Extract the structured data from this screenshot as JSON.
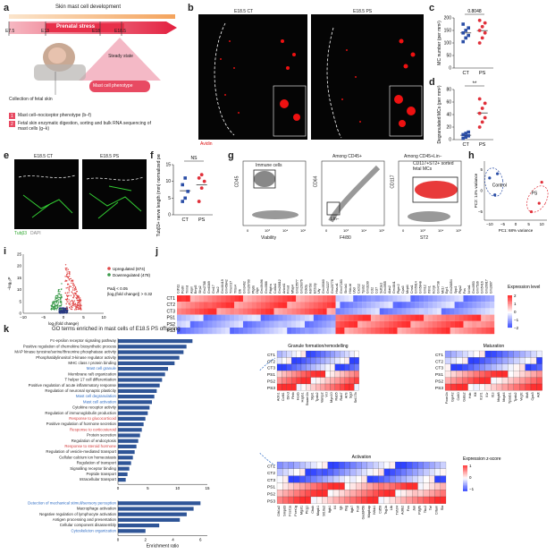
{
  "panels": {
    "a": "a",
    "b": "b",
    "c": "c",
    "d": "d",
    "e": "e",
    "f": "f",
    "g": "g",
    "h": "h",
    "i": "i",
    "j": "j",
    "k": "k"
  },
  "a": {
    "title": "Skin mast cell development",
    "timepoints": [
      "E7.5",
      "E13",
      "E18",
      "E18.5"
    ],
    "stress": "Prenatal stress",
    "steady": "Steady state",
    "phenotype": "Mast cell phenotype",
    "collection": "Collection of fetal skin",
    "item1": "Mast cell–nociceptor phenotype (b–f)",
    "item2": "Fetal skin enzymatic digestion, sorting and bulk RNA sequencing of mast cells (g–k)",
    "num1": "1",
    "num2": "2",
    "colors": {
      "stress": "#e8304a",
      "steady": "#f3b7c4",
      "bar": "#f6c89a"
    }
  },
  "b": {
    "ct": "E18.5 CT",
    "ps": "E18.5 PS",
    "stain": "Avidin"
  },
  "c": {
    "pvalue": "0.8048",
    "ylabel": "MC number (per mm²)",
    "groups": [
      "CT",
      "PS"
    ],
    "yticks": [
      "0",
      "50",
      "100",
      "150",
      "200"
    ],
    "chart_data": {
      "type": "scatter",
      "categories": [
        "CT",
        "PS"
      ],
      "ylim": [
        0,
        200
      ],
      "series": [
        {
          "name": "CT",
          "values": [
            105,
            120,
            130,
            140,
            150,
            160,
            175
          ]
        },
        {
          "name": "PS",
          "values": [
            100,
            120,
            140,
            150,
            165,
            180,
            190
          ]
        }
      ]
    }
  },
  "d": {
    "stars": "**",
    "ylabel": "Degranulated MCs (per mm²)",
    "groups": [
      "CT",
      "PS"
    ],
    "yticks": [
      "0",
      "20",
      "40",
      "60",
      "80"
    ],
    "chart_data": {
      "type": "scatter",
      "categories": [
        "CT",
        "PS"
      ],
      "ylim": [
        0,
        80
      ],
      "series": [
        {
          "name": "CT",
          "values": [
            2,
            4,
            6,
            8,
            10,
            12
          ]
        },
        {
          "name": "PS",
          "values": [
            20,
            28,
            35,
            42,
            50,
            58,
            65
          ]
        }
      ]
    }
  },
  "e": {
    "ct": "E18.5 CT",
    "ps": "E18.5 PS",
    "stain1": "Tubβ3",
    "stain2": "DAPI"
  },
  "f": {
    "ns": "NS",
    "ylabel": "Tubβ3+ nerve length (mm) normalized per mm²",
    "groups": [
      "CT",
      "PS"
    ],
    "yticks": [
      "0",
      "5",
      "10",
      "15"
    ],
    "chart_data": {
      "type": "scatter",
      "categories": [
        "CT",
        "PS"
      ],
      "ylim": [
        0,
        15
      ],
      "series": [
        {
          "name": "CT",
          "values": [
            4,
            5,
            7,
            9,
            11
          ]
        },
        {
          "name": "PS",
          "values": [
            4,
            8,
            10,
            11,
            12
          ]
        }
      ]
    }
  },
  "g": {
    "p1": {
      "gate": "Immune cells",
      "ylabel": "CD45",
      "xlabel": "Viability"
    },
    "p2": {
      "title": "Among CD45+",
      "gate": "Lin−",
      "ylabel": "CD64",
      "xlabel": "F4/80"
    },
    "p3": {
      "title": "Among CD45+Lin−",
      "gate": "CD117+ST2+ sorted fetal MCs",
      "ylabel": "CD117",
      "xlabel": "ST2"
    },
    "ticks": [
      "0",
      "10³",
      "10⁴",
      "10⁵"
    ]
  },
  "h": {
    "xlabel": "PC1: 68% variance",
    "ylabel": "PC2: 14% variance",
    "control": "Control",
    "ps": "PS",
    "xticks": [
      "−10",
      "−5",
      "0",
      "5",
      "10"
    ],
    "yticks": [
      "−5",
      "0",
      "5"
    ],
    "chart_data": {
      "type": "scatter",
      "xlim": [
        -12,
        12
      ],
      "ylim": [
        -7,
        7
      ],
      "series": [
        {
          "name": "Control",
          "x": [
            -10,
            -8,
            -7
          ],
          "y": [
            3,
            -1,
            4
          ]
        },
        {
          "name": "PS",
          "x": [
            6,
            9,
            10
          ],
          "y": [
            -5,
            -3,
            2
          ]
        }
      ]
    }
  },
  "i": {
    "xlabel": "log₂(fold change)",
    "ylabel": "−log₁₀P",
    "up": "Upregulated (874)",
    "down": "Downregulated (478)",
    "thr1": "Padj < 0.05",
    "thr2": "|log₂(fold change)| > 0.32",
    "xticks": [
      "−10",
      "−5",
      "0",
      "5",
      "10"
    ],
    "yticks": [
      "0",
      "5",
      "10",
      "15",
      "20",
      "25"
    ]
  },
  "j": {
    "rows": [
      "CT1",
      "CT2",
      "CT3",
      "PS1",
      "PS2",
      "PS3"
    ],
    "legend_title": "Expression level",
    "legend_ticks": [
      "2",
      "1",
      "0",
      "−1",
      "−2"
    ],
    "genes": [
      "Cdh11",
      "Postn",
      "Tnmd",
      "Aspn",
      "Bmp5",
      "Sfrp2",
      "Gm2788",
      "Gm6369",
      "Gm17",
      "Tac2",
      "Gm46419",
      "Gm45842",
      "Tmem37",
      "Thbs4",
      "Dlk",
      "Gm3462",
      "Gm26700",
      "Ptgds",
      "Ogn",
      "Gm49496",
      "Gm4986",
      "Pdgfra",
      "Col3a1",
      "Gm26812",
      "Ankrd1",
      "Fmod",
      "Mfap4",
      "Gm15577",
      "Gm29376",
      "Ddx3y",
      "Kdm5d",
      "Eif2s3y",
      "Uty",
      "Gm49360",
      "Gm3227",
      "Gm20778",
      "Hba-a1",
      "Gm47283",
      "Slc4a1",
      "Hbb-bt",
      "Ubd",
      "Cxcl12",
      "Tpsb2",
      "Gm3160",
      "Ccl2",
      "Ccl7",
      "Sult1a1",
      "Gm4955",
      "Alas2",
      "Gm4841",
      "Ptger2",
      "Cpa3",
      "Mcpt4",
      "Cma1",
      "Gm5914",
      "Gm5848",
      "Gm12",
      "Ifitm1",
      "Kcnj8",
      "Gm4738",
      "Mc1r",
      "Egr1",
      "Gm26854",
      "Spp1",
      "Ptgs2",
      "Fos",
      "Nr4a1",
      "Gm4953",
      "Gm7536",
      "Gm5416",
      "Gm26917",
      "Gm2897"
    ]
  },
  "k": {
    "title": "GO terms enriched in mast cells of E18.5 PS offspring",
    "xlabel": "Enrichment ratio",
    "xticks_top": [
      "0",
      "5",
      "10",
      "15"
    ],
    "xticks_bot": [
      "0",
      "2",
      "4",
      "6"
    ],
    "chart_data": [
      {
        "type": "bar",
        "categories": [
          "Fc-epsilon receptor signaling pathway",
          "Positive regulation of chemokine biosynthetic process",
          "MAP kinase tyrosine/serine/threonine phosphatase activity",
          "Phosphatidylinositol 3-kinase regulator activity",
          "MHC class I protein binding",
          "Mast cell granule",
          "Membrane raft organization",
          "T helper 17 cell differentiation",
          "Positive regulation of acute inflammatory response",
          "Regulation of neuronal synaptic plasticity",
          "Mast cell degranulation",
          "Mast cell activation",
          "Cytokine receptor activity",
          "Regulation of immunoglobulin production",
          "Response to glucocorticoid",
          "Positive regulation of hormone secretion",
          "Response to corticosteroid",
          "Protein secretion",
          "Regulation of endocytosis",
          "Response to steroid hormone",
          "Regulation of vesicle-mediated transport",
          "Cellular calcium ion homeostasis",
          "Regulation of transport",
          "Signalling receptor binding",
          "Peptide transport",
          "Intracellular transport"
        ],
        "values": [
          12.5,
          11.5,
          11,
          10.3,
          9.5,
          8.4,
          7.9,
          7.4,
          7.0,
          6.5,
          6.1,
          5.7,
          5.3,
          5.0,
          4.6,
          4.3,
          4.0,
          3.7,
          3.4,
          3.1,
          2.8,
          2.5,
          2.2,
          1.9,
          1.6,
          1.3
        ],
        "xlim": [
          0,
          15
        ]
      },
      {
        "type": "bar",
        "categories": [
          "Detection of mechanical stimuli/sensory perception",
          "Macrophage activation",
          "Negative regulation of lymphocyte activation",
          "Antigen processing and presentation",
          "Cellular component disassembly",
          "Cytoskeleton organization"
        ],
        "values": [
          6.0,
          5.5,
          5.0,
          4.5,
          3.0,
          2.0
        ],
        "xlim": [
          0,
          6.5
        ]
      }
    ],
    "blue_terms": [
      "Mast cell granule",
      "Mast cell degranulation",
      "Mast cell activation",
      "Detection of mechanical stimuli/sensory perception",
      "Cytoskeleton organization"
    ],
    "red_terms": [
      "Response to glucocorticoid",
      "Response to corticosteroid",
      "Response to steroid hormone"
    ],
    "granule": {
      "title": "Granule formation/remodelling",
      "rows": [
        "CT1",
        "CT2",
        "CT3",
        "PS1",
        "PS2",
        "PS3"
      ],
      "genes": [
        "Actn1",
        "Cofil1",
        "Dmd",
        "Flnb",
        "Hexb",
        "Hspb1",
        "Swam1b",
        "Stpl1",
        "Tpsb2",
        "Vamp2",
        "Vcl",
        "Myo10",
        "Rab5",
        "Rab7",
        "Arfs",
        "Sgd",
        "Snl17b"
      ]
    },
    "maturation": {
      "title": "Maturation",
      "rows": [
        "CT1",
        "CT2",
        "CT3",
        "PS1",
        "PS2",
        "PS3"
      ],
      "genes": [
        "Foxn1b",
        "Gpr42",
        "Cd40",
        "Gata2",
        "Hdc",
        "Kit",
        "Il1rl1",
        "Il1r",
        "Il1s",
        "Mcpt8",
        "Mcpt4",
        "Tpsab1",
        "Tpsb2",
        "Vegfc",
        "Itb8",
        "Cpa3",
        "Adt"
      ]
    },
    "activation": {
      "title": "Activation",
      "rows": [
        "CT1",
        "CT2",
        "CT3",
        "PS1",
        "PS2",
        "PS3"
      ],
      "genes": [
        "Cth1a2",
        "Smpd3",
        "Fcer1a",
        "Fcer1g",
        "Mgst1",
        "Plcg1",
        "Chuk",
        "Mapk1",
        "St10a2",
        "Itgb1",
        "Il4",
        "Igk",
        "Ifng",
        "Itgb7",
        "Fosl",
        "Gadd45b",
        "Mapkap",
        "Nfkb1",
        "Cd59",
        "Tsg1b",
        "Ltb",
        "Tnfsf4",
        "Adrb2",
        "Fos",
        "Jun",
        "Pdgfb",
        "Tbx2",
        "Tnf",
        "Crtam",
        "Sla"
      ]
    },
    "zlegend_title": "Expression z-score",
    "zlegend_ticks": [
      "1",
      "0",
      "−1"
    ]
  }
}
